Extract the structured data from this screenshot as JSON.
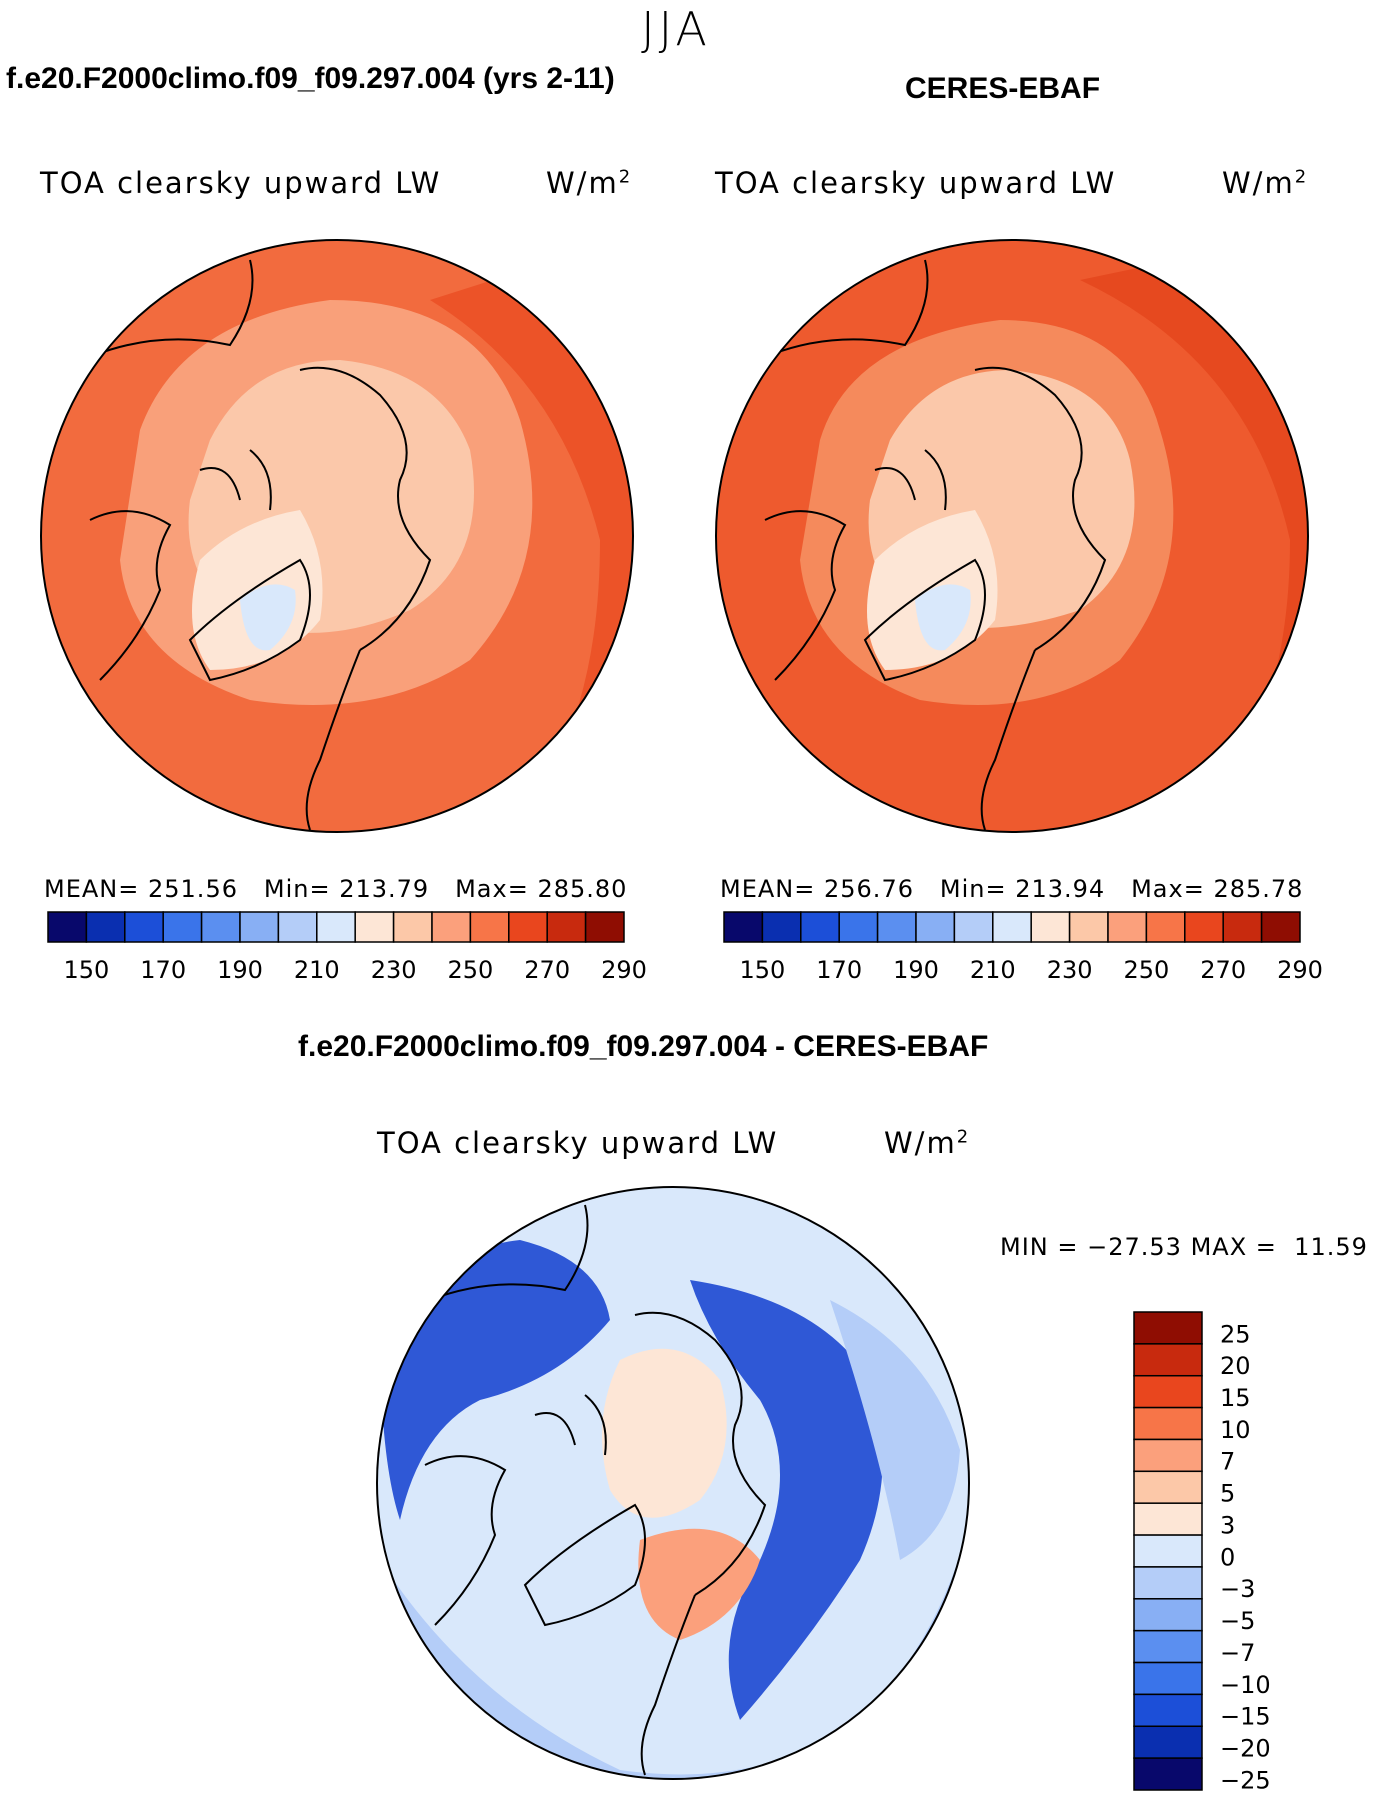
{
  "page": {
    "season": "JJA"
  },
  "panels": [
    {
      "title": "f.e20.F2000climo.f09_f09.297.004 (yrs 2-11)",
      "variable": "TOA clearsky upward LW",
      "units_base": "W/m",
      "units_exp": "2",
      "mean_label": "MEAN=",
      "mean": "251.56",
      "min_label": "Min=",
      "min": "213.79",
      "max_label": "Max=",
      "max": "285.80"
    },
    {
      "title": "CERES-EBAF",
      "variable": "TOA clearsky upward LW",
      "units_base": "W/m",
      "units_exp": "2",
      "mean_label": "MEAN=",
      "mean": "256.76",
      "min_label": "Min=",
      "min": "213.94",
      "max_label": "Max=",
      "max": "285.78"
    }
  ],
  "diff_panel": {
    "title": "f.e20.F2000climo.f09_f09.297.004 - CERES-EBAF",
    "variable": "TOA clearsky upward LW",
    "units_base": "W/m",
    "units_exp": "2",
    "min_label": "MIN =",
    "min": "−27.53",
    "max_label": "MAX =",
    "max": "11.59"
  },
  "colorbars": {
    "field": {
      "colors": [
        "#08086b",
        "#0a2fb0",
        "#1c4fd8",
        "#3a74ea",
        "#5b8ff0",
        "#88aff4",
        "#b4cdf8",
        "#d9e8fb",
        "#fde6d6",
        "#fcc8a8",
        "#fba07c",
        "#f77548",
        "#e9461e",
        "#c82a0e",
        "#8f0d02"
      ],
      "tick_labels": [
        "150",
        "170",
        "190",
        "210",
        "230",
        "250",
        "270",
        "290"
      ]
    },
    "diff": {
      "colors": [
        "#8f0d02",
        "#c82a0e",
        "#e9461e",
        "#f77548",
        "#fba07c",
        "#fcc8a8",
        "#fde6d6",
        "#d9e8fb",
        "#b4cdf8",
        "#88aff4",
        "#5b8ff0",
        "#3a74ea",
        "#1c4fd8",
        "#0a2fb0",
        "#08086b"
      ],
      "tick_labels": [
        "25",
        "20",
        "15",
        "10",
        "7",
        "5",
        "3",
        "0",
        "−3",
        "−5",
        "−7",
        "−10",
        "−15",
        "−20",
        "−25"
      ]
    }
  },
  "colors": {
    "ocean_field": "#f26b3e",
    "ocean_field_obs": "#ee5a2e",
    "arctic": "#fbc8aa",
    "mid": "#f9a07a",
    "greenland_core": "#d9e8fb",
    "diff_base": "#d9e8fb",
    "diff_blue": "#2f58d6",
    "diff_light_blue": "#b4cdf8",
    "diff_pink": "#fde6d6",
    "diff_orange": "#fba07c"
  }
}
